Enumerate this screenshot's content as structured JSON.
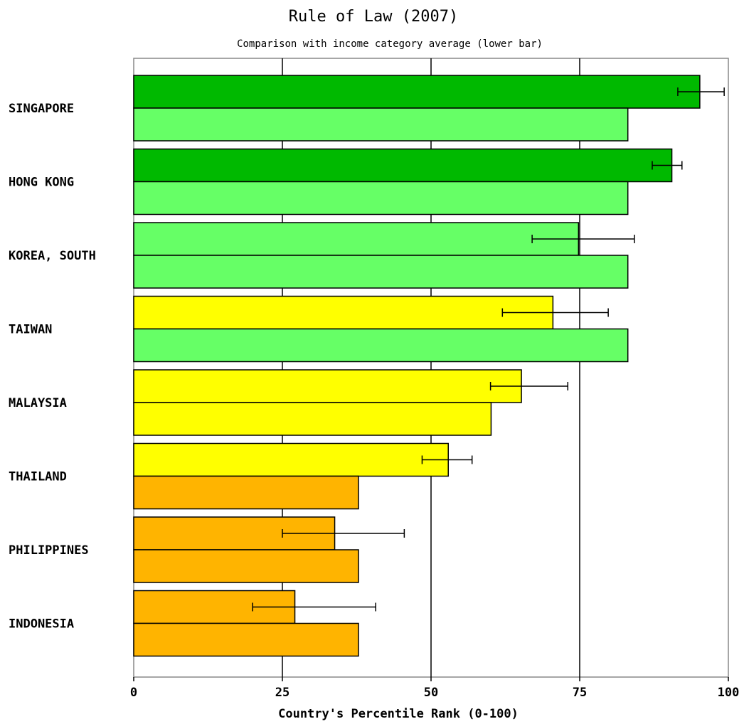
{
  "chart_data": {
    "type": "bar",
    "orientation": "horizontal",
    "title": "Rule of Law (2007)",
    "subtitle": "Comparison with income category average (lower bar)",
    "xlabel": "Country's Percentile Rank (0-100)",
    "xlim": [
      0,
      100
    ],
    "xticks": [
      0,
      25,
      50,
      75,
      100
    ],
    "grid": true,
    "categories": [
      "SINGAPORE",
      "HONG KONG",
      "KOREA, SOUTH",
      "TAIWAN",
      "MALAYSIA",
      "THAILAND",
      "PHILIPPINES",
      "INDONESIA"
    ],
    "series": [
      {
        "values": [
          95.2,
          90.5,
          74.8,
          70.5,
          65.2,
          52.9,
          33.8,
          27.1
        ],
        "error_low": [
          91.5,
          87.2,
          67.0,
          62.0,
          60.0,
          48.5,
          25.0,
          20.0
        ],
        "error_high": [
          99.3,
          92.2,
          84.2,
          79.8,
          73.0,
          56.9,
          45.5,
          40.7
        ],
        "colors": [
          "#00b900",
          "#00b900",
          "#66ff66",
          "#ffff00",
          "#ffff00",
          "#ffff00",
          "#ffb400",
          "#ffb400"
        ]
      },
      {
        "values": [
          83.1,
          83.1,
          83.1,
          83.1,
          60.1,
          37.8,
          37.8,
          37.8
        ],
        "colors": [
          "#66ff66",
          "#66ff66",
          "#66ff66",
          "#66ff66",
          "#ffff00",
          "#ffb400",
          "#ffb400",
          "#ffb400"
        ]
      }
    ]
  }
}
